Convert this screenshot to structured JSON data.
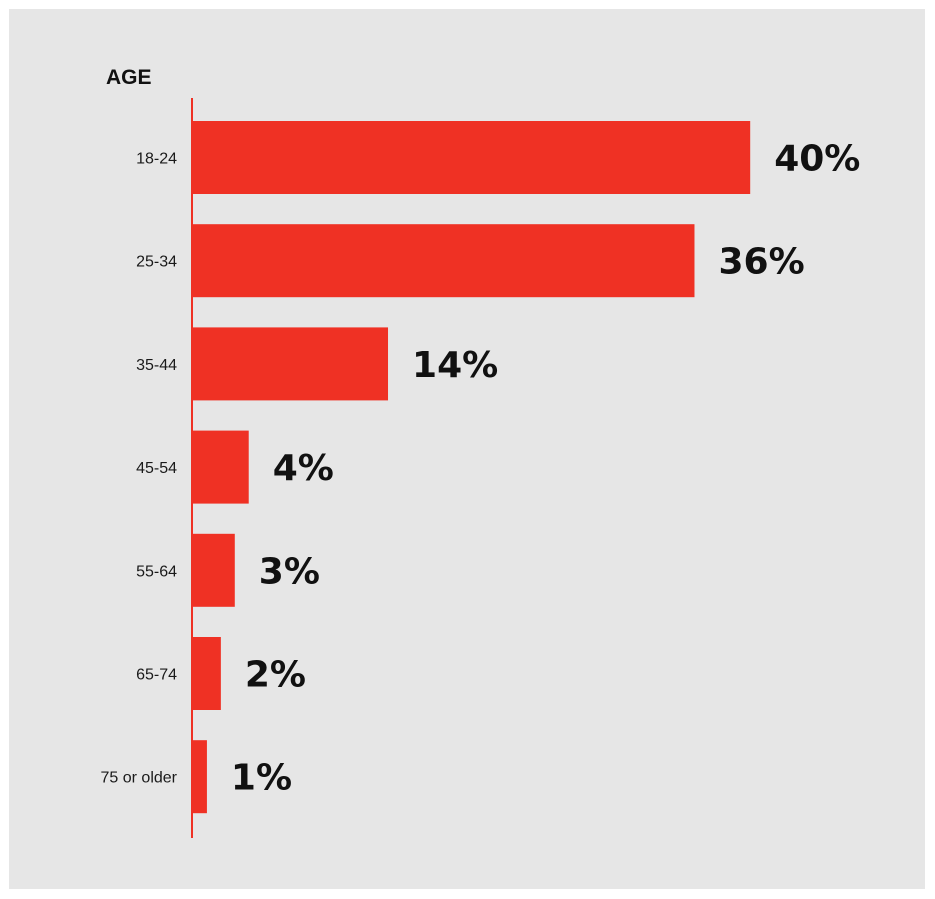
{
  "chart_data": {
    "type": "bar",
    "orientation": "horizontal",
    "title": "AGE",
    "categories": [
      "18-24",
      "25-34",
      "35-44",
      "45-54",
      "55-64",
      "65-74",
      "75 or older"
    ],
    "values": [
      40,
      36,
      14,
      4,
      3,
      2,
      1
    ],
    "value_labels": [
      "40%",
      "36%",
      "14%",
      "4%",
      "3%",
      "2%",
      "1%"
    ],
    "unit": "%",
    "grid": false,
    "legend": "none",
    "colors": {
      "bar": "#ef3124",
      "axis": "#ef3124",
      "background": "#e6e6e6",
      "text": "#111111"
    }
  }
}
